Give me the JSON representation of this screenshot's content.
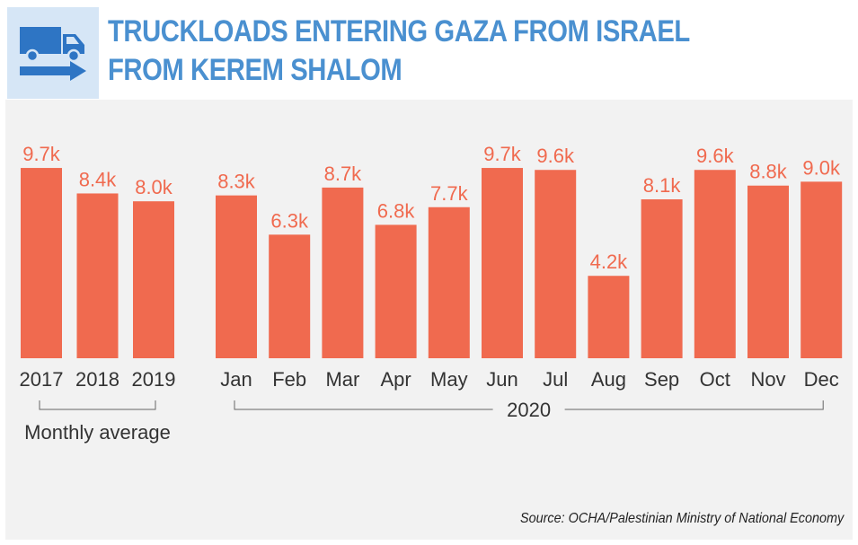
{
  "title": "TRUCKLOADS ENTERING GAZA FROM ISRAEL FROM KEREM SHALOM",
  "icon": "truck-arrow-icon",
  "colors": {
    "bar": "#f06a4f",
    "title": "#4a90d0",
    "icon": "#2e75c4",
    "icon_bg": "#d6e6f6",
    "panel": "#f2f2f2"
  },
  "source": "Source: OCHA/Palestinian Ministry of National Economy",
  "chart_data": {
    "type": "bar",
    "groups": [
      {
        "label": "Monthly average",
        "categories": [
          "2017",
          "2018",
          "2019"
        ],
        "values": [
          9.7,
          8.4,
          8.0
        ],
        "data_labels": [
          "9.7k",
          "8.4k",
          "8.0k"
        ]
      },
      {
        "label": "2020",
        "categories": [
          "Jan",
          "Feb",
          "Mar",
          "Apr",
          "May",
          "Jun",
          "Jul",
          "Aug",
          "Sep",
          "Oct",
          "Nov",
          "Dec"
        ],
        "values": [
          8.3,
          6.3,
          8.7,
          6.8,
          7.7,
          9.7,
          9.6,
          4.2,
          8.1,
          9.6,
          8.8,
          9.0
        ],
        "data_labels": [
          "8.3k",
          "6.3k",
          "8.7k",
          "6.8k",
          "7.7k",
          "9.7k",
          "9.6k",
          "4.2k",
          "8.1k",
          "9.6k",
          "8.8k",
          "9.0k"
        ]
      }
    ],
    "unit": "k",
    "grid": false,
    "legend": "none"
  }
}
